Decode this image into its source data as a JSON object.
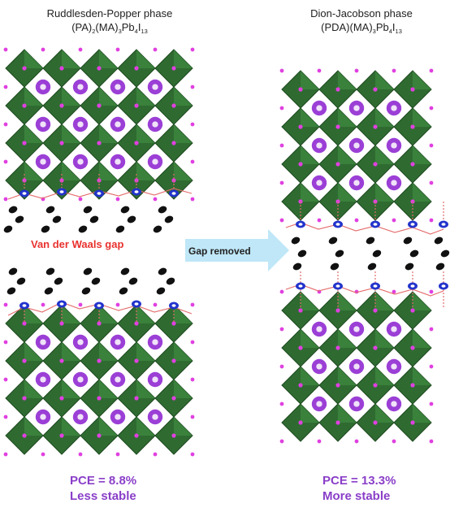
{
  "left": {
    "title": "Ruddlesden-Popper phase",
    "formula": {
      "a": "(PA)",
      "a_sub": "2",
      "b": "(MA)",
      "b_sub": "3",
      "c": "Pb",
      "c_sub": "4",
      "d": "I",
      "d_sub": "13"
    },
    "gap_label": "Van der Waals gap",
    "pce": "PCE = 8.8%",
    "stability": "Less stable"
  },
  "arrow": {
    "label": "Gap removed"
  },
  "right": {
    "title": "Dion-Jacobson phase",
    "formula": {
      "a": "(PDA)(MA)",
      "a_sub": "3",
      "c": "Pb",
      "c_sub": "4",
      "d": "I",
      "d_sub": "13"
    },
    "pce": "PCE = 13.3%",
    "stability": "More stable"
  },
  "colors": {
    "octahedron": "#2f6b31",
    "octahedron_dark": "#1e4a20",
    "iodide": "#e040e0",
    "cation": "#9b3fd6",
    "organic_n": "#2233cc",
    "organic_c": "#111111",
    "bond": "#e46a6a",
    "arrow": "#bfe7f7",
    "gap_text": "#e8322f",
    "pce_text": "#8a3fc8"
  }
}
